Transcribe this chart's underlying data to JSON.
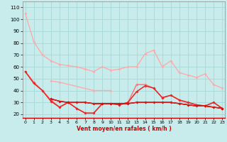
{
  "title": "",
  "xlabel": "Vent moyen/en rafales ( km/h )",
  "background_color": "#c8ecec",
  "grid_color": "#a8d8d8",
  "x": [
    0,
    1,
    2,
    3,
    4,
    5,
    6,
    7,
    8,
    9,
    10,
    11,
    12,
    13,
    14,
    15,
    16,
    17,
    18,
    19,
    20,
    21,
    22,
    23
  ],
  "ylim": [
    17,
    115
  ],
  "xlim": [
    -0.3,
    23.3
  ],
  "yticks": [
    20,
    30,
    40,
    50,
    60,
    70,
    80,
    90,
    100,
    110
  ],
  "lines": [
    {
      "color": "#ffaaaa",
      "values": [
        105,
        81,
        70,
        65,
        62,
        61,
        60,
        58,
        56,
        60,
        57,
        58,
        60,
        60,
        71,
        74,
        60,
        65,
        55,
        53,
        51,
        54,
        45,
        42
      ],
      "marker": "D",
      "markersize": 2,
      "linewidth": 1.0
    },
    {
      "color": "#ffaaaa",
      "values": [
        null,
        null,
        null,
        48,
        47,
        null,
        null,
        null,
        40,
        null,
        40,
        null,
        null,
        null,
        null,
        null,
        null,
        null,
        null,
        null,
        null,
        null,
        null,
        null
      ],
      "marker": "D",
      "markersize": 2,
      "linewidth": 1.0
    },
    {
      "color": "#ffaaaa",
      "values": [
        null,
        null,
        null,
        null,
        null,
        null,
        null,
        null,
        null,
        null,
        null,
        null,
        null,
        null,
        null,
        null,
        null,
        null,
        null,
        null,
        null,
        null,
        null,
        null
      ],
      "marker": "D",
      "markersize": 2,
      "linewidth": 1.0
    },
    {
      "color": "#ff7777",
      "values": [
        56,
        47,
        40,
        32,
        26,
        30,
        25,
        21,
        21,
        29,
        29,
        28,
        30,
        45,
        45,
        42,
        34,
        36,
        32,
        30,
        28,
        27,
        30,
        25
      ],
      "marker": "D",
      "markersize": 2,
      "linewidth": 1.1
    },
    {
      "color": "#ee2222",
      "values": [
        56,
        46,
        40,
        31,
        26,
        30,
        25,
        21,
        21,
        29,
        29,
        28,
        30,
        39,
        44,
        42,
        34,
        36,
        32,
        30,
        28,
        27,
        30,
        25
      ],
      "marker": "D",
      "markersize": 2,
      "linewidth": 1.1
    },
    {
      "color": "#cc0000",
      "values": [
        null,
        null,
        null,
        33,
        31,
        30,
        30,
        30,
        29,
        29,
        29,
        29,
        29,
        30,
        30,
        30,
        30,
        30,
        29,
        28,
        27,
        27,
        26,
        25
      ],
      "marker": "D",
      "markersize": 2,
      "linewidth": 1.0
    },
    {
      "color": "#bb0000",
      "values": [
        null,
        null,
        null,
        33,
        31,
        30,
        30,
        30,
        29,
        29,
        29,
        29,
        29,
        30,
        30,
        30,
        30,
        30,
        29,
        28,
        27,
        27,
        26,
        25
      ],
      "marker": null,
      "markersize": 2,
      "linewidth": 1.0
    },
    {
      "color": "#ee2222",
      "values": [
        null,
        null,
        null,
        33,
        31,
        30,
        30,
        30,
        29,
        29,
        29,
        29,
        29,
        30,
        30,
        30,
        30,
        30,
        29,
        28,
        27,
        27,
        26,
        25
      ],
      "marker": null,
      "markersize": 2,
      "linewidth": 0.7
    }
  ]
}
